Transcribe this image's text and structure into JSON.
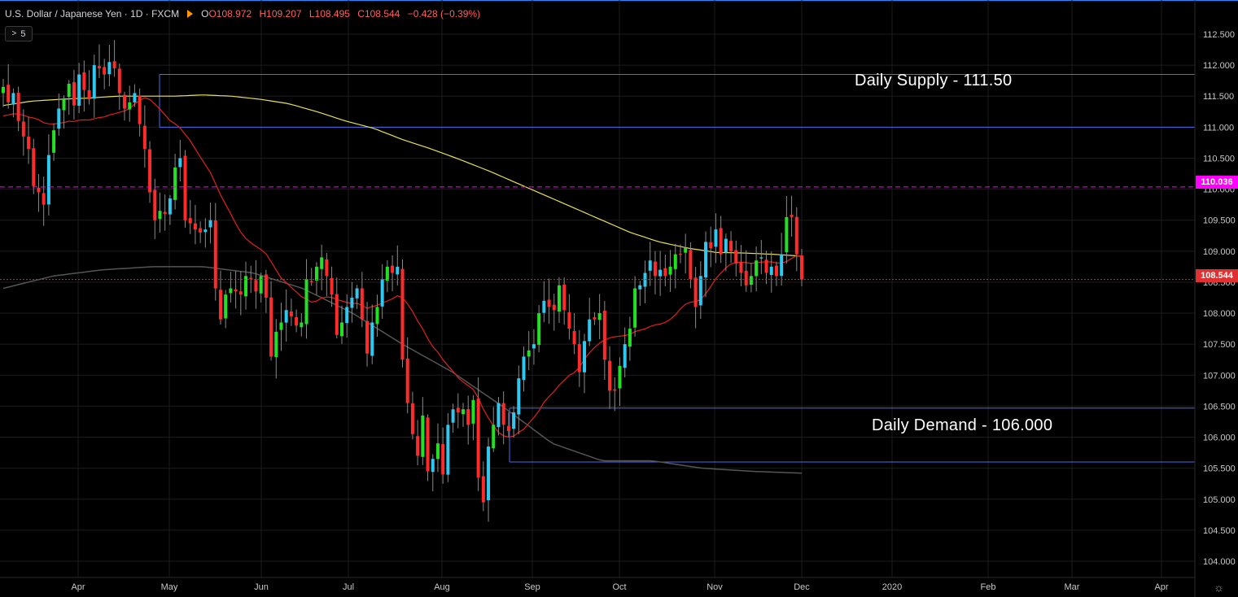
{
  "header": {
    "symbol": "U.S. Dollar / Japanese Yen · 1D · FXCM",
    "open": "O108.972",
    "high": "H109.207",
    "low": "L108.495",
    "close": "C108.544",
    "change": "−0.428 (−0.39%)"
  },
  "indicators_button": {
    "label": "5",
    "icon": "chevron-right-icon"
  },
  "settings_icon": "gear-icon",
  "colors": {
    "background": "#000000",
    "grid": "#1c1c1c",
    "bull": "#22e022",
    "bull_alt": "#2ec8f0",
    "bear": "#ff2b2b",
    "ma_fast": "#e02020",
    "ma_slow": "#e8e05a",
    "ma_long": "#555555",
    "zones": "#4a6cf0",
    "level_pink": "#ff00ff",
    "last_price": "#e03030",
    "axis_text": "#c8c8c8"
  },
  "annotations": {
    "supply": "Daily Supply - 111.50",
    "demand": "Daily Demand - 106.000"
  },
  "price_tags": {
    "marked_level": "110.036",
    "last_price": "108.544"
  },
  "chart_data": {
    "type": "candlestick",
    "title": "U.S. Dollar / Japanese Yen · 1D · FXCM",
    "ylim": [
      103.8,
      112.8
    ],
    "y_ticks": [
      "104.000",
      "104.500",
      "105.000",
      "105.500",
      "106.000",
      "106.500",
      "107.000",
      "107.500",
      "108.000",
      "108.500",
      "109.000",
      "109.500",
      "110.000",
      "110.500",
      "111.000",
      "111.500",
      "112.000",
      "112.500"
    ],
    "x_ticks": [
      "Apr",
      "May",
      "Jun",
      "Jul",
      "Aug",
      "Sep",
      "Oct",
      "Nov",
      "Dec",
      "2020",
      "Feb",
      "Mar",
      "Apr"
    ],
    "date_start": "2019-03-13",
    "date_end": "2020-04-30",
    "supply_zone": [
      111.0,
      111.85
    ],
    "demand_zone": [
      105.6,
      106.47
    ],
    "marked_level": 110.036,
    "last_close": 108.544,
    "closes": [
      111.65,
      111.4,
      111.55,
      111.1,
      110.85,
      110.65,
      110.05,
      109.95,
      109.75,
      110.55,
      110.95,
      111.3,
      111.45,
      111.7,
      111.35,
      111.85,
      111.6,
      111.45,
      112.0,
      111.95,
      111.85,
      112.05,
      111.95,
      111.55,
      111.3,
      111.4,
      111.55,
      111.05,
      110.65,
      109.95,
      109.5,
      109.65,
      109.6,
      109.85,
      110.35,
      110.5,
      109.5,
      109.45,
      109.35,
      109.3,
      109.35,
      109.5,
      108.4,
      107.9,
      108.3,
      108.4,
      108.35,
      108.3,
      108.6,
      108.55,
      108.35,
      108.6,
      108.25,
      107.3,
      107.7,
      107.85,
      108.05,
      107.95,
      107.8,
      107.85,
      108.55,
      108.5,
      108.75,
      108.9,
      108.6,
      108.3,
      107.65,
      107.85,
      108.1,
      108.25,
      108.4,
      107.9,
      107.35,
      107.85,
      108.1,
      108.55,
      108.75,
      108.65,
      108.75,
      107.25,
      106.55,
      106.05,
      105.7,
      106.35,
      105.45,
      105.65,
      105.9,
      105.4,
      106.2,
      106.45,
      106.4,
      106.45,
      106.2,
      106.6,
      105.35,
      104.95,
      105.85,
      106.2,
      106.55,
      106.2,
      106.1,
      106.4,
      106.95,
      107.3,
      107.4,
      107.5,
      108.0,
      108.2,
      108.1,
      108.05,
      108.45,
      108.05,
      107.75,
      107.5,
      107.05,
      107.55,
      107.9,
      107.9,
      108.0,
      107.25,
      106.75,
      106.75,
      107.15,
      107.5,
      107.75,
      108.4,
      108.45,
      108.65,
      108.85,
      108.6,
      108.7,
      108.6,
      108.75,
      108.95,
      108.95,
      109.05,
      108.55,
      108.1,
      108.6,
      109.15,
      109.05,
      109.35,
      108.95,
      109.2,
      109.0,
      108.8,
      108.65,
      108.45,
      108.6,
      108.85,
      108.9,
      108.65,
      108.75,
      108.6,
      108.95,
      109.55,
      109.55,
      108.95,
      108.544
    ],
    "ma_fast_last": 108.45,
    "ma_slow_last": 108.92
  }
}
